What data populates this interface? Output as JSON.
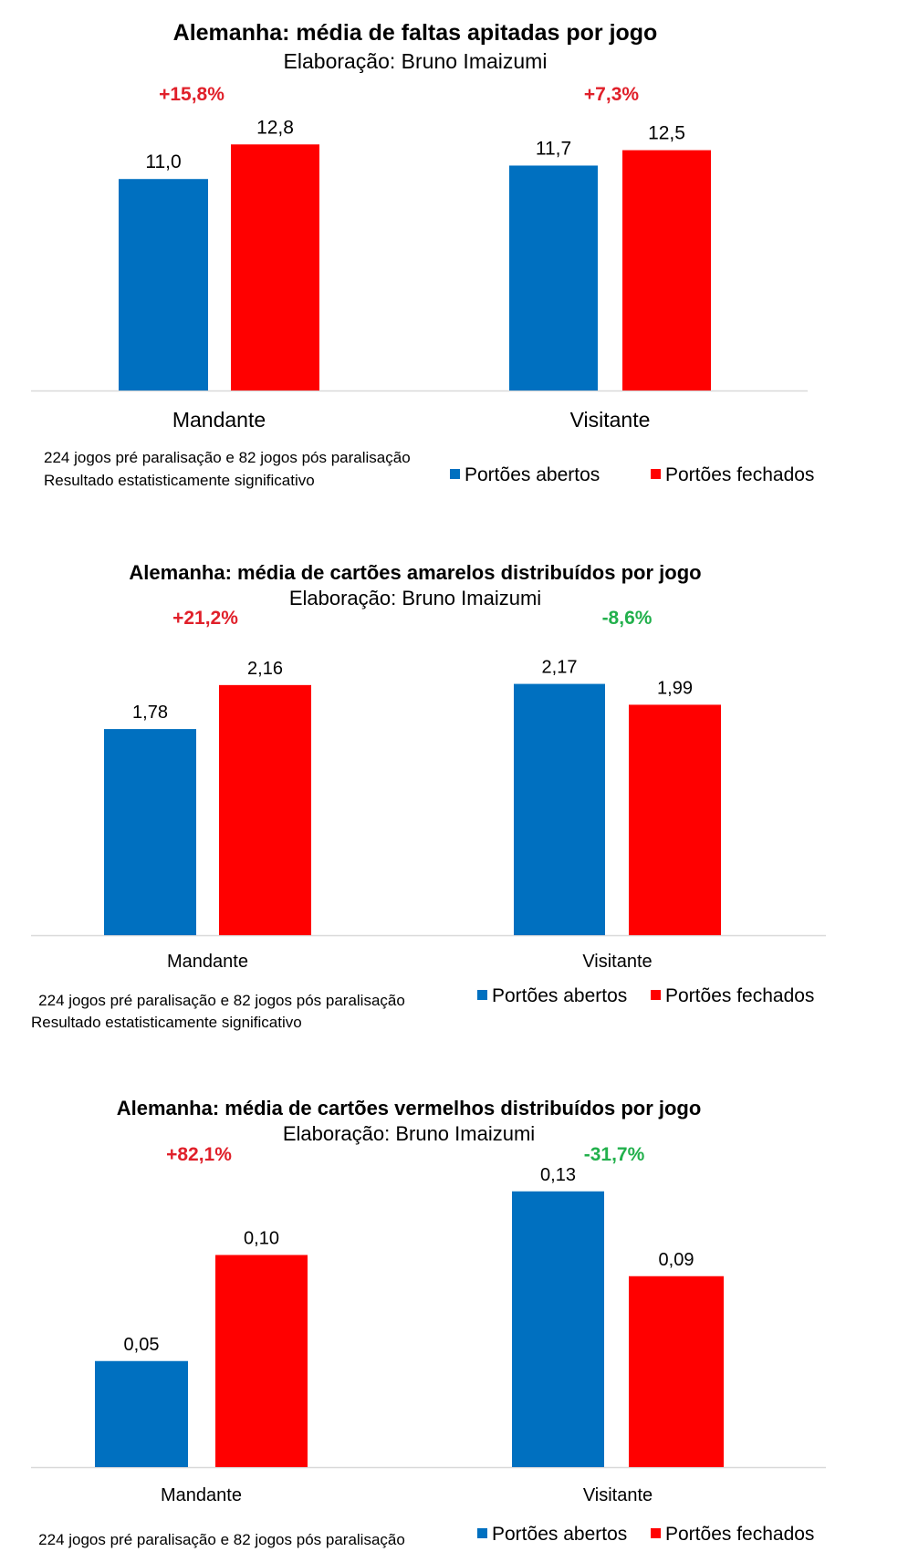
{
  "colors": {
    "open": "#0070C0",
    "closed": "#FF0000",
    "pct_up": "#E0202A",
    "pct_down": "#22B04C",
    "axis": "#D9D9D9",
    "text": "#000000"
  },
  "chart_data": [
    {
      "type": "bar",
      "title": "Alemanha:  média de faltas apitadas por jogo",
      "subtitle": "Elaboração: Bruno Imaizumi",
      "categories": [
        "Mandante",
        "Visitante"
      ],
      "series": [
        {
          "name": "Portões abertos",
          "values": [
            11.0,
            11.7
          ],
          "labels": [
            "11,0",
            "11,7"
          ]
        },
        {
          "name": "Portões fechados",
          "values": [
            12.8,
            12.5
          ],
          "labels": [
            "12,8",
            "12,5"
          ]
        }
      ],
      "changes": [
        {
          "text": "+15,8%",
          "direction": "up"
        },
        {
          "text": "+7,3%",
          "direction": "up"
        }
      ],
      "ylim": [
        0,
        14
      ],
      "legend_position": "bottom-right",
      "notes": [
        "224 jogos pré paralisação e 82 jogos pós paralisação",
        "Resultado estatisticamente significativo"
      ]
    },
    {
      "type": "bar",
      "title": "Alemanha: média de cartões amarelos distribuídos  por jogo",
      "subtitle": "Elaboração:  Bruno Imaizumi",
      "categories": [
        "Mandante",
        "Visitante"
      ],
      "series": [
        {
          "name": "Portões abertos",
          "values": [
            1.78,
            2.17
          ],
          "labels": [
            "1,78",
            "2,17"
          ]
        },
        {
          "name": "Portões fechados",
          "values": [
            2.16,
            1.99
          ],
          "labels": [
            "2,16",
            "1,99"
          ]
        }
      ],
      "changes": [
        {
          "text": "+21,2%",
          "direction": "up"
        },
        {
          "text": "-8,6%",
          "direction": "down"
        }
      ],
      "ylim": [
        0,
        2.6
      ],
      "legend_position": "bottom-right",
      "notes": [
        "224 jogos pré paralisação e 82 jogos pós paralisação",
        "Resultado estatisticamente significativo"
      ]
    },
    {
      "type": "bar",
      "title": "Alemanha: média de cartões vermelhos distribuídos  por jogo",
      "subtitle": "Elaboração:  Bruno Imaizumi",
      "categories": [
        "Mandante",
        "Visitante"
      ],
      "series": [
        {
          "name": "Portões abertos",
          "values": [
            0.05,
            0.13
          ],
          "labels": [
            "0,05",
            "0,13"
          ]
        },
        {
          "name": "Portões fechados",
          "values": [
            0.1,
            0.09
          ],
          "labels": [
            "0,10",
            "0,09"
          ]
        }
      ],
      "changes": [
        {
          "text": "+82,1%",
          "direction": "up"
        },
        {
          "text": "-31,7%",
          "direction": "down"
        }
      ],
      "ylim": [
        0,
        0.16
      ],
      "legend_position": "bottom-right",
      "notes": [
        "224 jogos pré paralisação e 82 jogos pós paralisação"
      ]
    }
  ]
}
